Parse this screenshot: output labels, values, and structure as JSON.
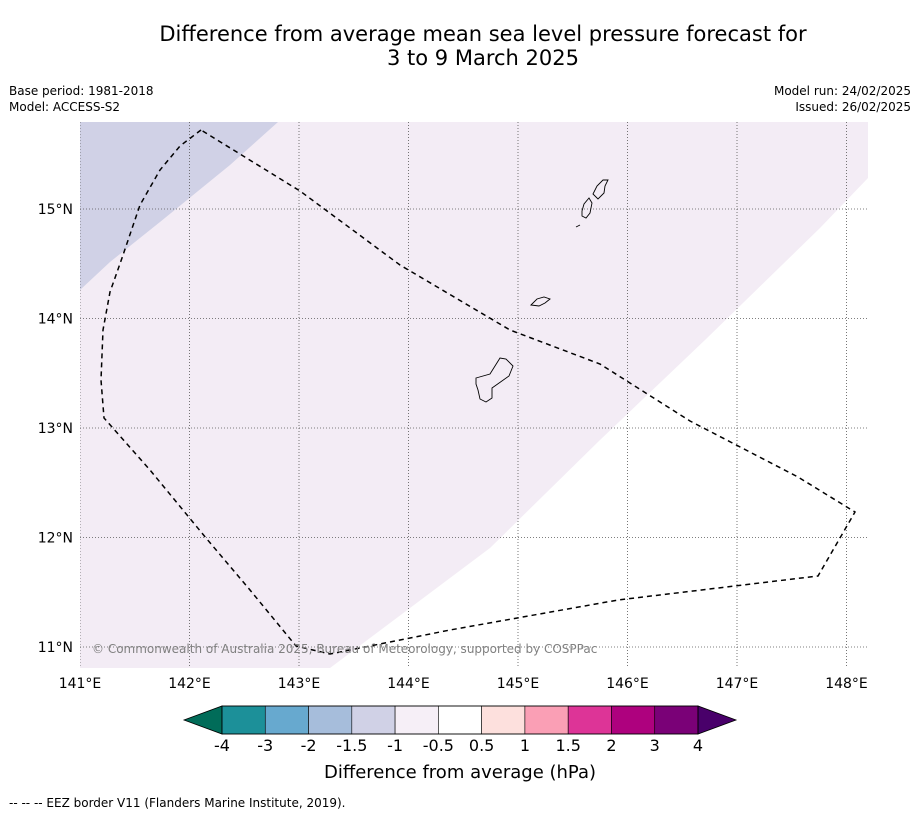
{
  "title_line1": "Difference from average mean sea level pressure forecast for",
  "title_line2": "3 to 9 March 2025",
  "base_period": "Base period: 1981-2018",
  "model": "Model: ACCESS-S2",
  "model_run": "Model run: 24/02/2025",
  "issued": "Issued: 26/02/2025",
  "copyright": "© Commonwealth of Australia 2025, Bureau of Meteorology, supported by COSPPac",
  "footnote": "--  --  -- EEZ border V11 (Flanders Marine Institute, 2019).",
  "map": {
    "lon_range": [
      141.0,
      148.2
    ],
    "lat_range": [
      10.8,
      15.8
    ],
    "lon_ticks": [
      "141°E",
      "142°E",
      "143°E",
      "144°E",
      "145°E",
      "146°E",
      "147°E",
      "148°E"
    ],
    "lat_ticks": [
      "15°N",
      "14°N",
      "13°N",
      "12°N",
      "11°N"
    ],
    "colors": {
      "band_neg_1_5_to_neg_1": "#d0d1e6",
      "band_neg_1_to_neg_0_5": "#f3ecf5",
      "band_neg_0_5_to_0_5": "#ffffff",
      "gridline": "#555555",
      "eez_border": "#000000"
    }
  },
  "colorbar": {
    "label": "Difference from average (hPa)",
    "ticks": [
      "-4",
      "-3",
      "-2",
      "-1.5",
      "-1",
      "-0.5",
      "0.5",
      "1",
      "1.5",
      "2",
      "3",
      "4"
    ],
    "colors": {
      "extend_min": "#016c59",
      "bins": [
        "#1c9099",
        "#67a9cf",
        "#a6bddb",
        "#d0d1e6",
        "#f6eff7",
        "#ffffff",
        "#fde0dd",
        "#fa9fb5",
        "#dd3497",
        "#ae017e",
        "#7a0177"
      ],
      "extend_max": "#49006a"
    }
  }
}
